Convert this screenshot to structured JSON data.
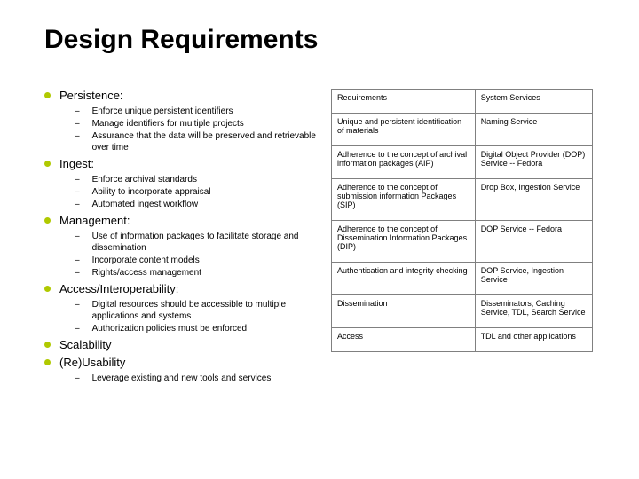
{
  "title": "Design Requirements",
  "sections": [
    {
      "heading": "Persistence:",
      "items": [
        "Enforce unique persistent identifiers",
        "Manage identifiers for multiple projects",
        "Assurance that the data will be preserved and retrievable over time"
      ]
    },
    {
      "heading": "Ingest:",
      "items": [
        "Enforce archival standards",
        "Ability to incorporate appraisal",
        "Automated ingest workflow"
      ]
    },
    {
      "heading": "Management:",
      "items": [
        "Use of information packages to facilitate storage and dissemination",
        "Incorporate content models",
        "Rights/access management"
      ]
    },
    {
      "heading": "Access/Interoperability:",
      "items": [
        "Digital resources should be accessible to multiple applications and systems",
        "Authorization policies must be enforced"
      ]
    },
    {
      "heading": "Scalability",
      "items": []
    },
    {
      "heading": "(Re)Usability",
      "items": [
        "Leverage existing and new tools and services"
      ]
    }
  ],
  "table": {
    "headers": [
      "Requirements",
      "System Services"
    ],
    "rows": [
      [
        "Unique and persistent identification of materials",
        "Naming Service"
      ],
      [
        "Adherence to the concept of archival information packages (AIP)",
        "Digital Object Provider (DOP) Service -- Fedora"
      ],
      [
        "Adherence to the concept of submission information Packages (SIP)",
        "Drop Box, Ingestion Service"
      ],
      [
        "Adherence to the concept of Dissemination Information Packages (DIP)",
        "DOP Service -- Fedora"
      ],
      [
        "Authentication and integrity checking",
        "DOP Service, Ingestion Service"
      ],
      [
        "Dissemination",
        "Disseminators, Caching Service, TDL, Search Service"
      ],
      [
        "Access",
        "TDL and other applications"
      ]
    ]
  },
  "colors": {
    "bullet": "#b0c900",
    "text": "#000000",
    "border": "#808080",
    "background": "#ffffff"
  },
  "fonts": {
    "title_size": 30,
    "lvl1_size": 13,
    "lvl2_size": 10,
    "table_size": 9
  }
}
